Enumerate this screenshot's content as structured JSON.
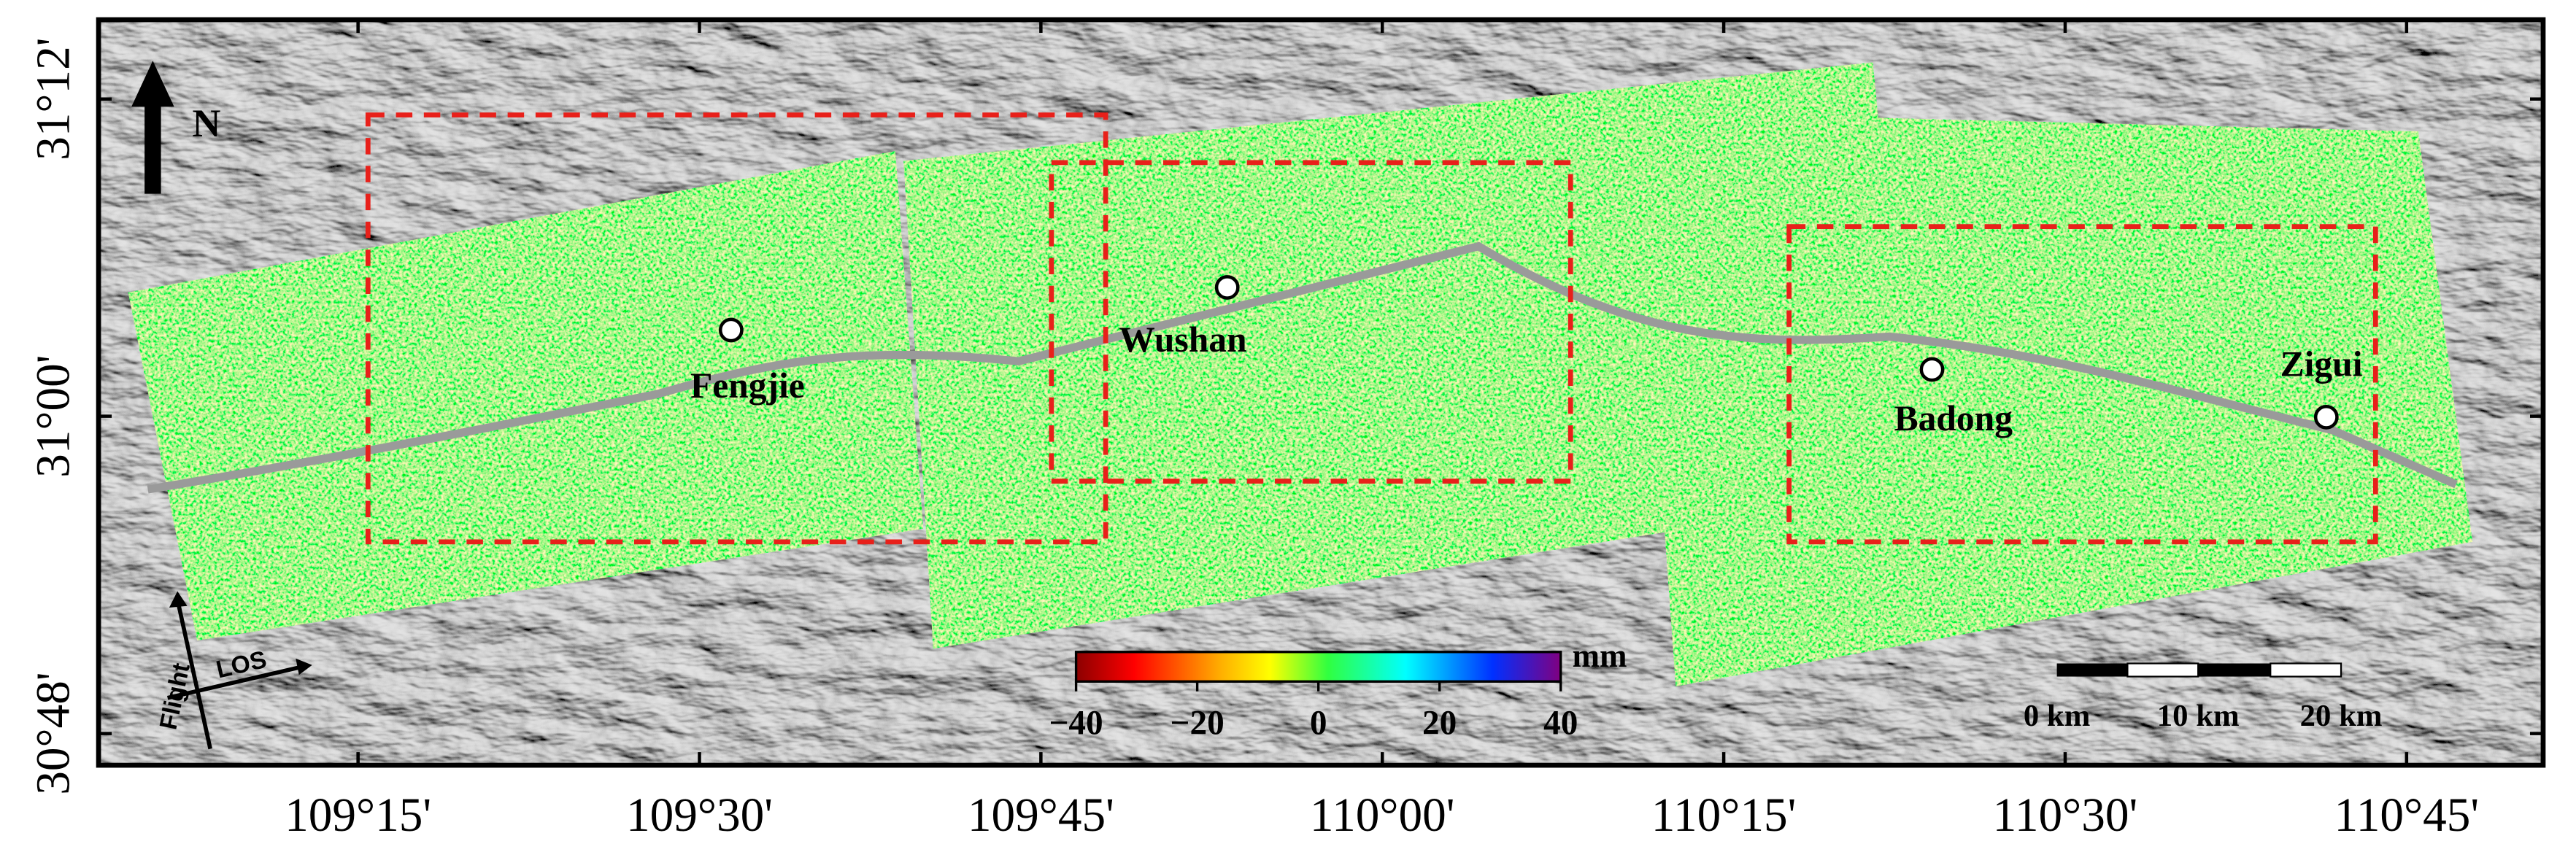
{
  "map": {
    "north_label": "N",
    "flight_label": "Flight",
    "los_label": "LOS",
    "xlim": [
      109.06,
      110.85
    ],
    "ylim": [
      30.78,
      31.25
    ],
    "xticks": [
      {
        "value": 109.25,
        "label": "109°15'"
      },
      {
        "value": 109.5,
        "label": "109°30'"
      },
      {
        "value": 109.75,
        "label": "109°45'"
      },
      {
        "value": 110,
        "label": "110°00'"
      },
      {
        "value": 110.25,
        "label": "110°15'"
      },
      {
        "value": 110.5,
        "label": "110°30'"
      },
      {
        "value": 110.75,
        "label": "110°45'"
      }
    ],
    "yticks": [
      {
        "value": 30.8,
        "label": "30°48'"
      },
      {
        "value": 31,
        "label": "31°00'"
      },
      {
        "value": 31.2,
        "label": "31°12'"
      }
    ],
    "places": [
      "Fengjie",
      "Wushan",
      "Badong",
      "Zigui"
    ],
    "colorbar": {
      "unit": "mm",
      "lim": [
        -40,
        40
      ],
      "ticks": [
        {
          "value": -40,
          "label": "−40"
        },
        {
          "value": -20,
          "label": "−20"
        },
        0,
        20,
        40
      ]
    },
    "scale_bar": [
      "0 km",
      "10 km",
      "20 km"
    ]
  }
}
